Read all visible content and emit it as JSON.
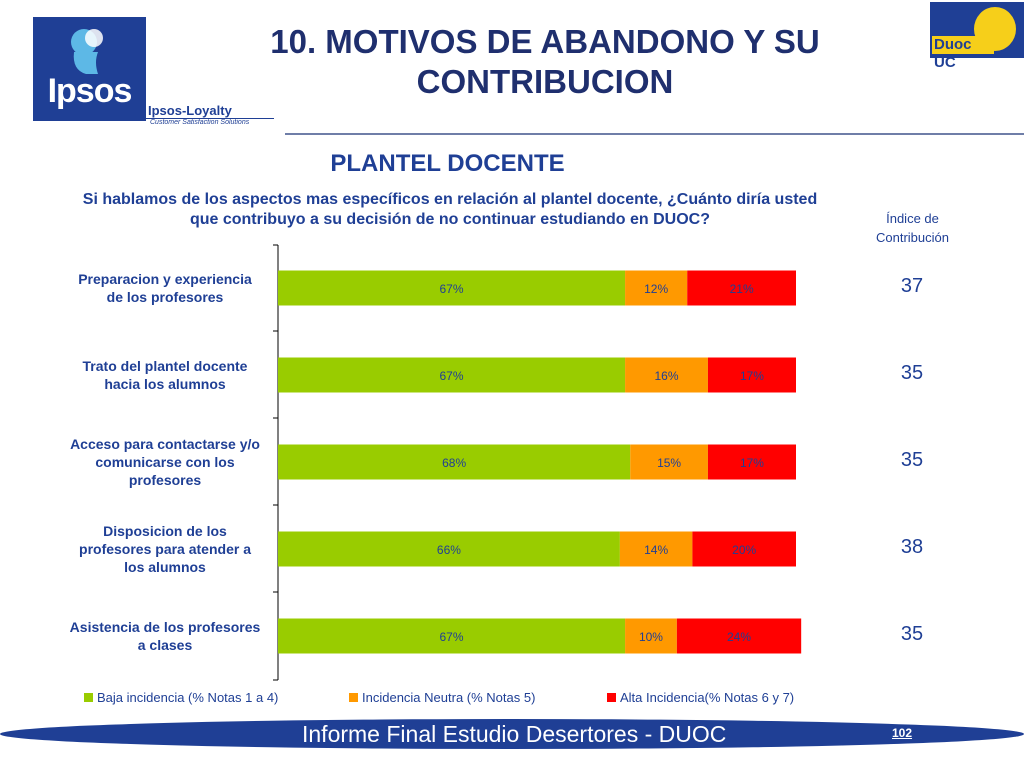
{
  "header": {
    "title_line1": "10. MOTIVOS DE ABANDONO Y SU",
    "title_line2": "CONTRIBUCION"
  },
  "logos": {
    "ipsos_word": "Ipsos",
    "ipsos_loyalty": "Ipsos-Loyalty",
    "ipsos_tagline": "Customer Satisfaction Solutions",
    "duoc_word": "Duoc UC"
  },
  "section_title": "PLANTEL DOCENTE",
  "question_line1": "Si hablamos de los aspectos mas específicos en relación al plantel docente, ¿Cuánto diría usted",
  "question_line2": "que contribuyo a su decisión de no continuar estudiando en DUOC?",
  "index_header_line1": "Índice de",
  "index_header_line2": "Contribución",
  "colors": {
    "baja": "#99cc00",
    "neutra": "#ff9900",
    "alta": "#ff0000",
    "text": "#1f3f95"
  },
  "chart_data": {
    "type": "bar",
    "orientation": "horizontal",
    "stacked": "percent",
    "categories": [
      [
        "Preparacion y experiencia",
        "de los profesores"
      ],
      [
        "Trato del plantel docente",
        "hacia los alumnos"
      ],
      [
        "Acceso para contactarse y/o",
        "comunicarse con los",
        "profesores"
      ],
      [
        "Disposicion de los",
        "profesores para atender a",
        "los alumnos"
      ],
      [
        "Asistencia de los profesores",
        "a clases"
      ]
    ],
    "series": [
      {
        "name": "Baja incidencia (% Notas 1 a 4)",
        "values": [
          67,
          67,
          68,
          66,
          67
        ],
        "labels": [
          "67%",
          "67%",
          "68%",
          "66%",
          "67%"
        ]
      },
      {
        "name": "Incidencia Neutra (% Notas 5)",
        "values": [
          12,
          16,
          15,
          14,
          10
        ],
        "labels": [
          "12%",
          "16%",
          "15%",
          "14%",
          "10%"
        ]
      },
      {
        "name": "Alta Incidencia(% Notas 6 y 7)",
        "values": [
          21,
          17,
          17,
          20,
          24
        ],
        "labels": [
          "21%",
          "17%",
          "17%",
          "20%",
          "24%"
        ]
      }
    ],
    "contribution_index": [
      "37",
      "35",
      "35",
      "38",
      "35"
    ],
    "xlim": [
      0,
      100
    ],
    "legend_position": "bottom"
  },
  "footer": {
    "text": "Informe Final Estudio Desertores - DUOC",
    "page_number": "102"
  }
}
